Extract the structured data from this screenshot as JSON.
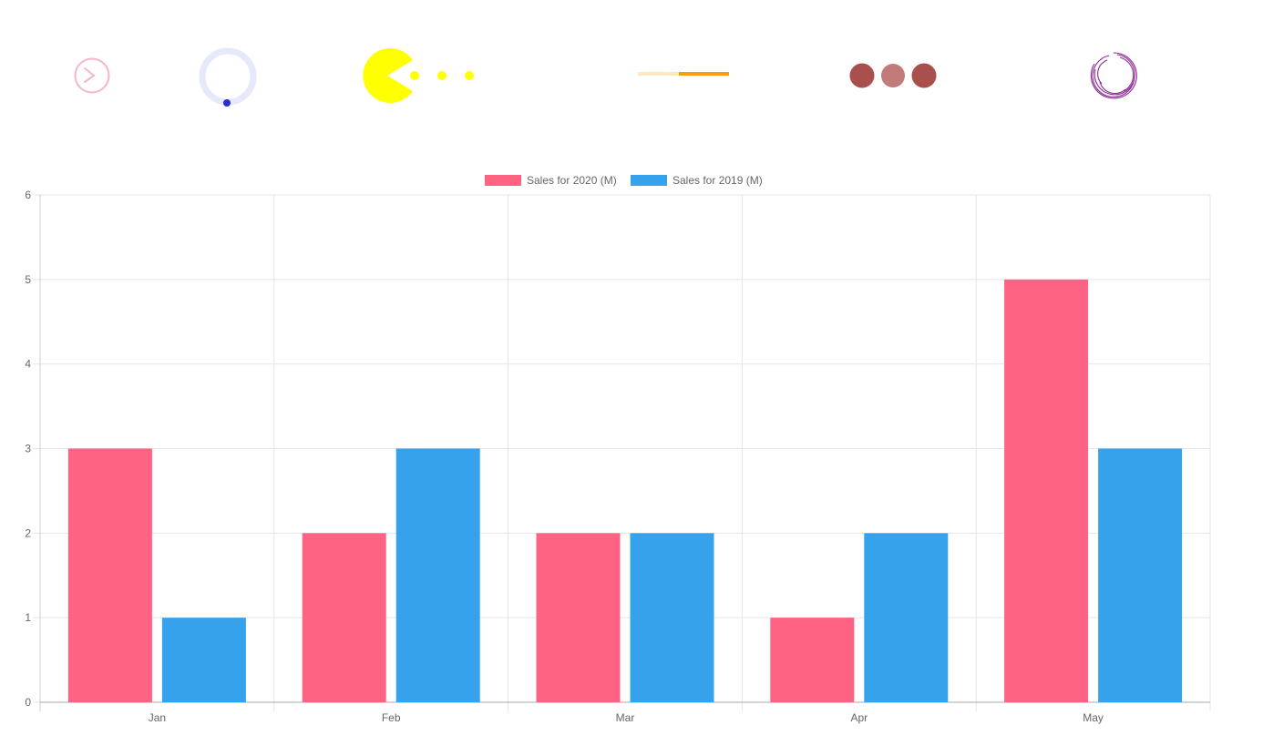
{
  "loaders": [
    {
      "name": "arrow-circle-loader-icon",
      "color": "#f4b6c8"
    },
    {
      "name": "ring-dot-loader-icon",
      "ring_color": "#e6e8fb",
      "dot_color": "#2b2bd8"
    },
    {
      "name": "pacman-loader-icon",
      "color": "#ffff00"
    },
    {
      "name": "line-progress-loader-icon",
      "track_color": "#fde7c2",
      "bar_color": "#f5a00f",
      "progress": 0.55
    },
    {
      "name": "three-dots-loader-icon",
      "colors": [
        "#a9504f",
        "#c07b7a",
        "#a9504f"
      ]
    },
    {
      "name": "spiral-loader-icon",
      "color": "#8e2b96"
    }
  ],
  "chart_data": {
    "type": "bar",
    "categories": [
      "Jan",
      "Feb",
      "Mar",
      "Apr",
      "May"
    ],
    "series": [
      {
        "name": "Sales for 2020 (M)",
        "values": [
          3,
          2,
          2,
          1,
          5
        ],
        "color": "#ff6384"
      },
      {
        "name": "Sales for 2019 (M)",
        "values": [
          1,
          3,
          2,
          2,
          3
        ],
        "color": "#36a2eb"
      }
    ],
    "ylim": [
      0,
      6
    ],
    "yticks": [
      "0",
      "1",
      "2",
      "3",
      "4",
      "5",
      "6"
    ],
    "grid": true,
    "legend_position": "top-center"
  }
}
